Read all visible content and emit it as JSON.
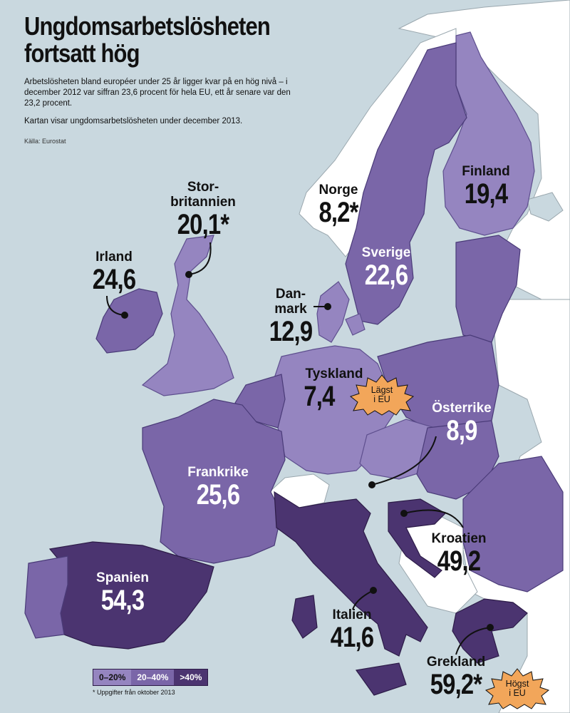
{
  "header": {
    "title": "Ungdomsarbetslösheten fortsatt hög",
    "intro": "Arbetslösheten bland européer under 25 år ligger kvar på en hög nivå – i december 2012 var siffran 23,6 procent för hela EU, ett år senare var den 23,2 procent.",
    "intro2": "Kartan visar ungdomsarbetslösheten under december 2013.",
    "source": "Källa: Eurostat"
  },
  "countries": {
    "irland": {
      "name": "Irland",
      "value": "24,6"
    },
    "storbritannien": {
      "name": "Stor-\nbritannien",
      "value": "20,1*"
    },
    "norge": {
      "name": "Norge",
      "value": "8,2*"
    },
    "finland": {
      "name": "Finland",
      "value": "19,4"
    },
    "sverige": {
      "name": "Sverige",
      "value": "22,6"
    },
    "danmark": {
      "name": "Dan-\nmark",
      "value": "12,9"
    },
    "tyskland": {
      "name": "Tyskland",
      "value": "7,4"
    },
    "osterrike": {
      "name": "Österrike",
      "value": "8,9"
    },
    "frankrike": {
      "name": "Frankrike",
      "value": "25,6"
    },
    "spanien": {
      "name": "Spanien",
      "value": "54,3"
    },
    "kroatien": {
      "name": "Kroatien",
      "value": "49,2"
    },
    "italien": {
      "name": "Italien",
      "value": "41,6"
    },
    "grekland": {
      "name": "Grekland",
      "value": "59,2*"
    }
  },
  "badges": {
    "lowest": "Lägst\ni EU",
    "highest": "Högst\ni EU"
  },
  "legend": {
    "items": [
      "0–20%",
      "20–40%",
      ">40%"
    ]
  },
  "footnote": "* Uppgifter från oktober 2013",
  "colors": {
    "sea": "#c9d8df",
    "band_0_20": "#9585c0",
    "band_20_40": "#7a66a8",
    "band_over_40": "#4b3470",
    "non_eu": "#ffffff",
    "badge": "#f2a65a"
  }
}
